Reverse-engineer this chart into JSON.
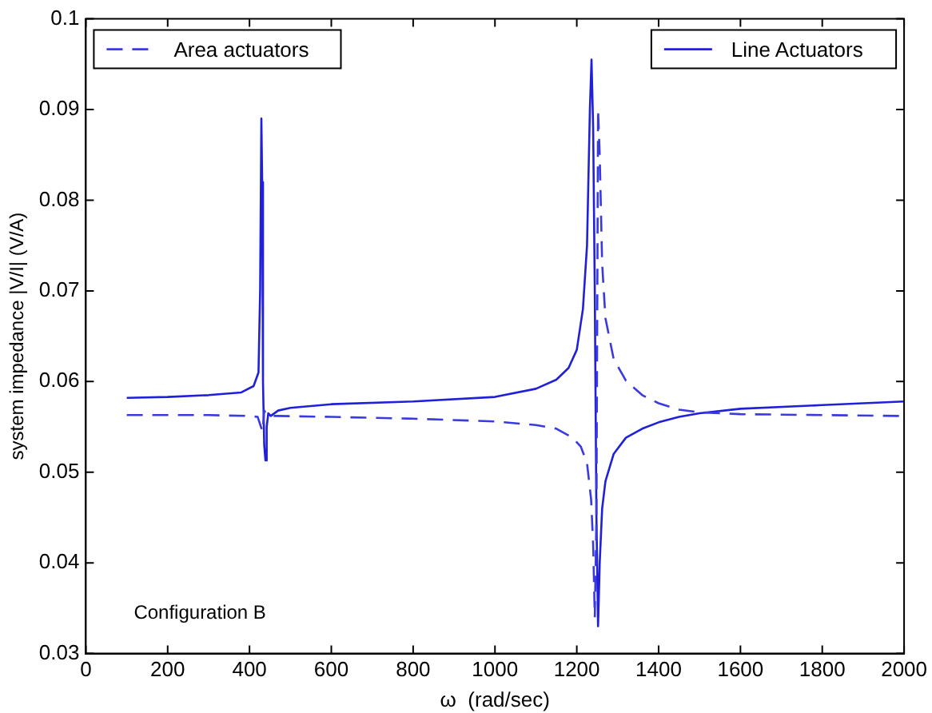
{
  "chart_data": {
    "type": "line",
    "xlabel": "ω  (rad/sec)",
    "ylabel": "system impedance |V/I| (V/A)",
    "xlim": [
      0,
      2000
    ],
    "xticks": [
      0,
      200,
      400,
      600,
      800,
      1000,
      1200,
      1400,
      1600,
      1800,
      2000
    ],
    "ylim": [
      0.03,
      0.1
    ],
    "yticks": [
      0.03,
      0.04,
      0.05,
      0.06,
      0.07,
      0.08,
      0.09,
      0.1
    ],
    "grid": false,
    "legend": "top",
    "marker": "none",
    "annotations": [
      "Configuration B"
    ],
    "series": [
      {
        "name": "Area actuators",
        "color": "#3a3ae0",
        "line_style": "dashed",
        "x": [
          100,
          200,
          300,
          400,
          420,
          428,
          432,
          436,
          440,
          450,
          470,
          600,
          800,
          1000,
          1100,
          1150,
          1190,
          1210,
          1225,
          1235,
          1240,
          1244,
          1248,
          1252,
          1256,
          1262,
          1270,
          1290,
          1320,
          1360,
          1400,
          1450,
          1500,
          1600,
          1800,
          2000
        ],
        "values": [
          0.0563,
          0.0563,
          0.0563,
          0.0562,
          0.0561,
          0.055,
          0.0545,
          0.0568,
          0.0565,
          0.0562,
          0.0562,
          0.0561,
          0.0559,
          0.0556,
          0.0552,
          0.0548,
          0.0538,
          0.0528,
          0.051,
          0.047,
          0.042,
          0.034,
          0.045,
          0.09,
          0.085,
          0.073,
          0.067,
          0.0625,
          0.0601,
          0.0585,
          0.0576,
          0.0569,
          0.0566,
          0.0564,
          0.0563,
          0.0562
        ]
      },
      {
        "name": "Line Actuators",
        "color": "#2020d8",
        "line_style": "solid",
        "x": [
          100,
          200,
          300,
          380,
          410,
          422,
          426,
          429,
          431,
          433,
          436,
          439,
          442,
          446,
          452,
          470,
          500,
          600,
          800,
          1000,
          1100,
          1150,
          1180,
          1200,
          1215,
          1225,
          1232,
          1236,
          1240,
          1244,
          1248,
          1252,
          1256,
          1262,
          1270,
          1290,
          1320,
          1360,
          1400,
          1450,
          1500,
          1600,
          1800,
          2000
        ],
        "values": [
          0.0582,
          0.0583,
          0.0585,
          0.0588,
          0.0595,
          0.061,
          0.07,
          0.089,
          0.082,
          0.06,
          0.053,
          0.0513,
          0.055,
          0.0565,
          0.0562,
          0.0568,
          0.0571,
          0.0575,
          0.0578,
          0.0583,
          0.0592,
          0.0602,
          0.0615,
          0.0635,
          0.068,
          0.075,
          0.09,
          0.0955,
          0.088,
          0.07,
          0.045,
          0.033,
          0.04,
          0.046,
          0.049,
          0.052,
          0.0538,
          0.0548,
          0.0555,
          0.0561,
          0.0565,
          0.057,
          0.0574,
          0.0578
        ]
      }
    ]
  }
}
